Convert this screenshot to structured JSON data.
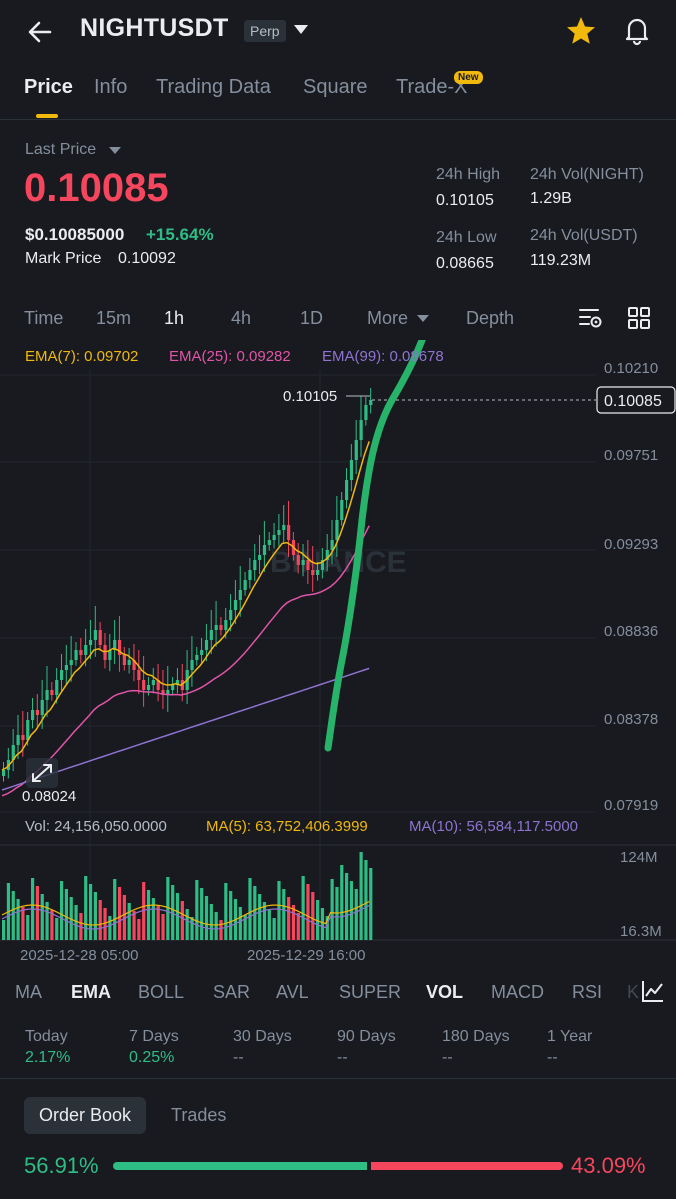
{
  "header": {
    "symbol": "NIGHTUSDT",
    "contract_badge": "Perp",
    "icons": [
      "back-arrow-icon",
      "chevron-down-icon",
      "star-icon",
      "bell-icon"
    ],
    "star_color": "#f0b90b"
  },
  "tabs": [
    {
      "label": "Price",
      "active": true
    },
    {
      "label": "Info"
    },
    {
      "label": "Trading Data"
    },
    {
      "label": "Square"
    },
    {
      "label": "Trade-X",
      "badge": "New"
    }
  ],
  "price": {
    "last_price_label": "Last Price",
    "last_price": "0.10085",
    "usd_price": "$0.10085000",
    "change_pct": "+15.64%",
    "mark_label": "Mark Price",
    "mark_value": "0.10092"
  },
  "stats": {
    "high_label": "24h High",
    "high_value": "0.10105",
    "low_label": "24h Low",
    "low_value": "0.08665",
    "vol_base_label": "24h Vol(NIGHT)",
    "vol_base_value": "1.29B",
    "vol_quote_label": "24h Vol(USDT)",
    "vol_quote_value": "119.23M"
  },
  "intervals": [
    {
      "label": "Time"
    },
    {
      "label": "15m"
    },
    {
      "label": "1h",
      "active": true
    },
    {
      "label": "4h"
    },
    {
      "label": "1D"
    },
    {
      "label": "More"
    },
    {
      "label": "Depth"
    }
  ],
  "ema": {
    "ema7": "EMA(7): 0.09702",
    "ema25": "EMA(25): 0.09282",
    "ema99": "EMA(99): 0.08678",
    "colors": {
      "ema7": "#f0b90b",
      "ema25": "#e154a8",
      "ema99": "#8e73d1"
    }
  },
  "chart": {
    "price_ticks": [
      "0.10210",
      "0.09751",
      "0.09293",
      "0.08836",
      "0.08378",
      "0.07919"
    ],
    "current_price_label": "0.10085",
    "high_marker": "0.10105",
    "low_marker": "0.08024",
    "watermark": "BINANCE",
    "volume_ticks": [
      "124M",
      "16.3M"
    ],
    "time_ticks": [
      "2025-12-28 05:00",
      "2025-12-29 16:00"
    ],
    "up_color": "#2ebd85",
    "down_color": "#f6465d"
  },
  "volume_legend": {
    "vol": "Vol: 24,156,050.0000",
    "ma5": "MA(5): 63,752,406.3999",
    "ma10": "MA(10): 56,584,117.5000"
  },
  "indicators": [
    {
      "label": "MA"
    },
    {
      "label": "EMA",
      "active": true
    },
    {
      "label": "BOLL"
    },
    {
      "label": "SAR"
    },
    {
      "label": "AVL"
    },
    {
      "label": "SUPER"
    },
    {
      "label": "VOL",
      "active": true
    },
    {
      "label": "MACD"
    },
    {
      "label": "RSI"
    },
    {
      "label": "K"
    }
  ],
  "performance": [
    {
      "label": "Today",
      "value": "2.17%"
    },
    {
      "label": "7 Days",
      "value": "0.25%"
    },
    {
      "label": "30 Days",
      "value": "--"
    },
    {
      "label": "90 Days",
      "value": "--"
    },
    {
      "label": "180 Days",
      "value": "--"
    },
    {
      "label": "1 Year",
      "value": "--"
    }
  ],
  "order_book": {
    "tab_order_book": "Order Book",
    "tab_trades": "Trades",
    "buy_pct": "56.91%",
    "sell_pct": "43.09%",
    "buy_ratio": 0.5691
  }
}
